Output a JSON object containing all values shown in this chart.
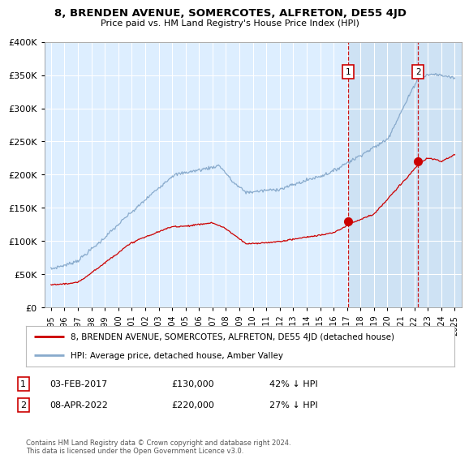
{
  "title": "8, BRENDEN AVENUE, SOMERCOTES, ALFRETON, DE55 4JD",
  "subtitle": "Price paid vs. HM Land Registry's House Price Index (HPI)",
  "legend_line1": "8, BRENDEN AVENUE, SOMERCOTES, ALFRETON, DE55 4JD (detached house)",
  "legend_line2": "HPI: Average price, detached house, Amber Valley",
  "annotation1_date": "03-FEB-2017",
  "annotation1_price": "£130,000",
  "annotation1_hpi": "42% ↓ HPI",
  "annotation2_date": "08-APR-2022",
  "annotation2_price": "£220,000",
  "annotation2_hpi": "27% ↓ HPI",
  "footer": "Contains HM Land Registry data © Crown copyright and database right 2024.\nThis data is licensed under the Open Government Licence v3.0.",
  "plot_bg_color": "#ddeeff",
  "plot_shade_color": "#cce0f5",
  "fig_bg_color": "#ffffff",
  "red_color": "#cc0000",
  "blue_color": "#88aacc",
  "marker1_year": 2017.09,
  "marker1_price": 130000,
  "marker2_year": 2022.27,
  "marker2_price": 220000,
  "ylim_max": 400000,
  "xlim_min": 1994.5,
  "xlim_max": 2025.5
}
